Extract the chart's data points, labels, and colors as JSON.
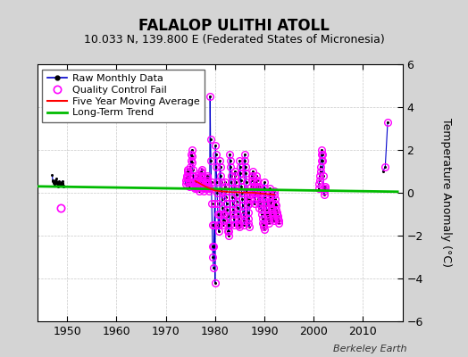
{
  "title": "FALALOP ULITHI ATOLL",
  "subtitle": "10.033 N, 139.800 E (Federated States of Micronesia)",
  "ylabel": "Temperature Anomaly (°C)",
  "credit": "Berkeley Earth",
  "ylim": [
    -6,
    6
  ],
  "xlim": [
    1944,
    2018
  ],
  "yticks": [
    -6,
    -4,
    -2,
    0,
    2,
    4,
    6
  ],
  "xticks": [
    1950,
    1960,
    1970,
    1980,
    1990,
    2000,
    2010
  ],
  "fig_bg": "#d4d4d4",
  "plot_bg": "#ffffff",
  "raw_color": "#0000cc",
  "dot_color": "#000000",
  "qc_color": "#ff00ff",
  "ma_color": "#ff0000",
  "trend_color": "#00bb00",
  "title_fontsize": 12,
  "subtitle_fontsize": 9,
  "tick_fontsize": 9,
  "ylabel_fontsize": 9,
  "legend_fontsize": 8,
  "credit_fontsize": 8,
  "seg1_years": [
    1947.0,
    1947.083,
    1947.167,
    1947.25,
    1947.333,
    1947.417,
    1947.5,
    1947.583,
    1947.667,
    1947.75,
    1947.833,
    1947.917,
    1948.0,
    1948.083,
    1948.167,
    1948.25,
    1948.333,
    1948.417,
    1948.5,
    1948.583,
    1948.667,
    1948.75,
    1948.833,
    1948.917,
    1949.0,
    1949.083,
    1949.167,
    1949.25,
    1949.333
  ],
  "seg1_vals": [
    0.85,
    0.6,
    0.55,
    0.5,
    0.45,
    0.4,
    0.35,
    0.5,
    0.6,
    0.55,
    0.65,
    0.45,
    0.4,
    0.5,
    0.35,
    0.3,
    0.45,
    0.55,
    0.4,
    0.35,
    0.45,
    0.4,
    0.5,
    0.35,
    0.4,
    0.55,
    0.45,
    0.35,
    0.3
  ],
  "seg1_qc_outlier_year": 1948.75,
  "seg1_qc_outlier_val": -0.7,
  "seg2_years": [
    1974.0,
    1974.083,
    1974.167,
    1974.25,
    1974.333,
    1974.417,
    1974.5,
    1974.583,
    1974.667,
    1974.75,
    1974.833,
    1974.917,
    1975.0,
    1975.083,
    1975.167,
    1975.25,
    1975.333,
    1975.417,
    1975.5,
    1975.583,
    1975.667,
    1975.75,
    1975.833,
    1975.917,
    1976.0,
    1976.083,
    1976.167,
    1976.25,
    1976.333,
    1976.417,
    1976.5,
    1976.583,
    1976.667,
    1976.75,
    1976.833,
    1976.917,
    1977.0,
    1977.083,
    1977.167,
    1977.25,
    1977.333,
    1977.417,
    1977.5,
    1977.583,
    1977.667,
    1977.75,
    1977.833,
    1977.917,
    1978.0,
    1978.083,
    1978.167,
    1978.25,
    1978.333,
    1978.417,
    1978.5,
    1978.583,
    1978.667,
    1978.75,
    1978.833,
    1978.917,
    1979.0,
    1979.083,
    1979.167,
    1979.25,
    1979.333,
    1979.417,
    1979.5,
    1979.583,
    1979.667,
    1979.75,
    1979.833,
    1979.917,
    1980.0,
    1980.083,
    1980.167,
    1980.25,
    1980.333,
    1980.417,
    1980.5,
    1980.583,
    1980.667,
    1980.75,
    1980.833,
    1980.917,
    1981.0,
    1981.083,
    1981.167,
    1981.25,
    1981.333,
    1981.417,
    1981.5,
    1981.583,
    1981.667,
    1981.75,
    1981.833,
    1981.917,
    1982.0,
    1982.083,
    1982.167,
    1982.25,
    1982.333,
    1982.417,
    1982.5,
    1982.583,
    1982.667,
    1982.75,
    1982.833,
    1982.917,
    1983.0,
    1983.083,
    1983.167,
    1983.25,
    1983.333,
    1983.417,
    1983.5,
    1983.583,
    1983.667,
    1983.75,
    1983.833,
    1983.917,
    1984.0,
    1984.083,
    1984.167,
    1984.25,
    1984.333,
    1984.417,
    1984.5,
    1984.583,
    1984.667,
    1984.75,
    1984.833,
    1984.917,
    1985.0,
    1985.083,
    1985.167,
    1985.25,
    1985.333,
    1985.417,
    1985.5,
    1985.583,
    1985.667,
    1985.75,
    1985.833,
    1985.917,
    1986.0,
    1986.083,
    1986.167,
    1986.25,
    1986.333,
    1986.417,
    1986.5,
    1986.583,
    1986.667,
    1986.75,
    1986.833,
    1986.917,
    1987.0,
    1987.083,
    1987.167,
    1987.25,
    1987.333,
    1987.417,
    1987.5,
    1987.583,
    1987.667,
    1987.75,
    1987.833,
    1987.917,
    1988.0,
    1988.083,
    1988.167,
    1988.25,
    1988.333,
    1988.417,
    1988.5,
    1988.583,
    1988.667,
    1988.75,
    1988.833,
    1988.917,
    1989.0,
    1989.083,
    1989.167,
    1989.25,
    1989.333,
    1989.417,
    1989.5,
    1989.583,
    1989.667,
    1989.75,
    1989.833,
    1989.917,
    1990.0,
    1990.083,
    1990.167,
    1990.25,
    1990.333,
    1990.417,
    1990.5,
    1990.583,
    1990.667,
    1990.75,
    1990.833,
    1990.917,
    1991.0,
    1991.083,
    1991.167,
    1991.25,
    1991.333,
    1991.417,
    1991.5,
    1991.583,
    1991.667,
    1991.75,
    1991.833,
    1991.917,
    1992.0,
    1992.083,
    1992.167,
    1992.25,
    1992.333,
    1992.417,
    1992.5,
    1992.583,
    1992.667,
    1992.75,
    1992.833,
    1992.917
  ],
  "seg2_vals": [
    0.6,
    0.4,
    0.5,
    0.7,
    0.8,
    1.0,
    1.1,
    0.9,
    0.7,
    0.5,
    0.3,
    0.5,
    1.2,
    1.5,
    1.8,
    2.0,
    1.7,
    1.4,
    1.1,
    0.8,
    0.5,
    0.3,
    0.2,
    0.4,
    0.5,
    0.3,
    0.2,
    0.4,
    0.6,
    0.8,
    0.7,
    0.5,
    0.3,
    0.1,
    0.3,
    0.5,
    0.6,
    0.8,
    1.0,
    1.1,
    0.9,
    0.7,
    0.5,
    0.3,
    0.2,
    0.1,
    0.3,
    0.2,
    0.4,
    0.3,
    0.2,
    0.5,
    0.7,
    0.8,
    0.6,
    0.4,
    0.2,
    0.1,
    0.3,
    0.2,
    4.5,
    2.5,
    1.5,
    0.5,
    -0.5,
    -1.5,
    -2.5,
    -3.0,
    -3.5,
    -2.5,
    -1.5,
    -0.5,
    -4.2,
    2.2,
    1.8,
    1.2,
    0.5,
    0.0,
    -0.5,
    -1.0,
    -1.5,
    -1.8,
    -1.5,
    -1.0,
    1.5,
    1.2,
    0.8,
    0.5,
    0.1,
    -0.3,
    -0.7,
    -1.0,
    -1.3,
    -1.5,
    -1.3,
    -1.0,
    0.5,
    0.3,
    0.1,
    -0.2,
    -0.5,
    -0.8,
    -1.1,
    -1.5,
    -1.8,
    -2.0,
    -1.8,
    -1.5,
    1.8,
    1.5,
    1.2,
    0.8,
    0.5,
    0.2,
    -0.2,
    -0.5,
    -0.8,
    -1.0,
    -1.2,
    -1.5,
    1.0,
    0.8,
    0.5,
    0.2,
    -0.1,
    -0.4,
    -0.7,
    -1.0,
    -1.2,
    -1.4,
    -1.5,
    -1.6,
    1.5,
    1.2,
    0.9,
    0.6,
    0.3,
    0.0,
    -0.3,
    -0.6,
    -0.9,
    -1.1,
    -1.3,
    -1.5,
    1.8,
    1.5,
    1.2,
    0.9,
    0.5,
    0.1,
    -0.3,
    -0.6,
    -0.9,
    -1.2,
    -1.4,
    -1.6,
    -0.5,
    -0.3,
    -0.1,
    0.1,
    0.3,
    0.6,
    0.8,
    1.0,
    0.8,
    0.5,
    0.3,
    0.0,
    -0.5,
    -0.3,
    0.0,
    0.3,
    0.5,
    0.8,
    0.6,
    0.3,
    0.0,
    -0.3,
    -0.5,
    -0.7,
    0.3,
    0.1,
    -0.1,
    -0.4,
    -0.6,
    -0.8,
    -1.0,
    -1.2,
    -1.4,
    -1.5,
    -1.6,
    -1.7,
    0.5,
    0.2,
    0.0,
    -0.2,
    -0.4,
    -0.6,
    -0.8,
    -1.0,
    -1.1,
    -1.2,
    -1.3,
    -1.4,
    0.2,
    0.0,
    -0.2,
    -0.4,
    -0.5,
    -0.7,
    -0.8,
    -0.9,
    -1.0,
    -1.1,
    -1.2,
    -1.3,
    0.1,
    -0.1,
    -0.3,
    -0.5,
    -0.6,
    -0.8,
    -0.9,
    -1.0,
    -1.1,
    -1.2,
    -1.3,
    -1.4
  ],
  "seg3_years": [
    2001.0,
    2001.083,
    2001.167,
    2001.25,
    2001.333,
    2001.417,
    2001.5,
    2001.583,
    2001.667,
    2001.75,
    2001.833,
    2001.917,
    2002.0,
    2002.083,
    2002.167,
    2002.25,
    2002.333
  ],
  "seg3_vals": [
    0.2,
    0.4,
    0.6,
    0.8,
    1.0,
    1.2,
    1.5,
    1.8,
    2.0,
    1.8,
    1.5,
    0.8,
    0.2,
    -0.1,
    0.1,
    0.2,
    0.3
  ],
  "seg4_years": [
    2014.0,
    2014.5,
    2015.0
  ],
  "seg4_vals": [
    1.0,
    1.2,
    3.3
  ],
  "trend_x": [
    1944,
    2017
  ],
  "trend_y": [
    0.3,
    0.05
  ]
}
